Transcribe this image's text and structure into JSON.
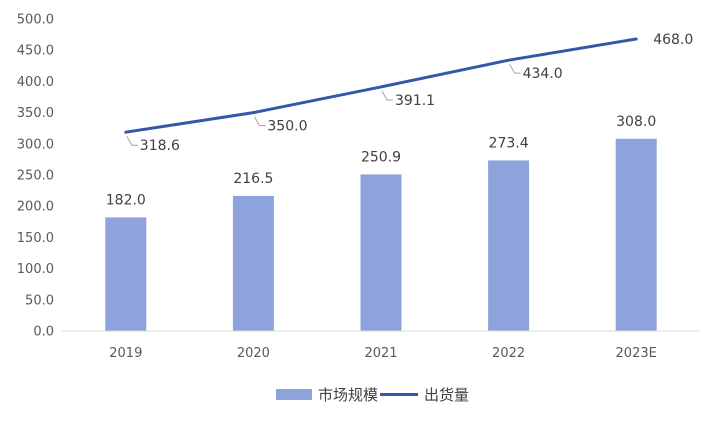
{
  "chart_data": {
    "type": "bar",
    "categories": [
      "2019",
      "2020",
      "2021",
      "2022",
      "2023E"
    ],
    "series": [
      {
        "name": "市场规模",
        "type": "bar",
        "color": "#8ea2db",
        "values": [
          182.0,
          216.5,
          250.9,
          273.4,
          308.0
        ],
        "labels": [
          "182.0",
          "216.5",
          "250.9",
          "273.4",
          "308.0"
        ]
      },
      {
        "name": "出货量",
        "type": "line",
        "color": "#3358a8",
        "values": [
          318.6,
          350.0,
          391.1,
          434.0,
          468.0
        ],
        "labels": [
          "318.6",
          "350.0",
          "391.1",
          "434.0",
          "468.0"
        ]
      }
    ],
    "ylim": [
      0,
      500
    ],
    "yticks": [
      "0.0",
      "50.0",
      "100.0",
      "150.0",
      "200.0",
      "250.0",
      "300.0",
      "350.0",
      "400.0",
      "450.0",
      "500.0"
    ],
    "legend_position": "bottom",
    "grid": false
  }
}
